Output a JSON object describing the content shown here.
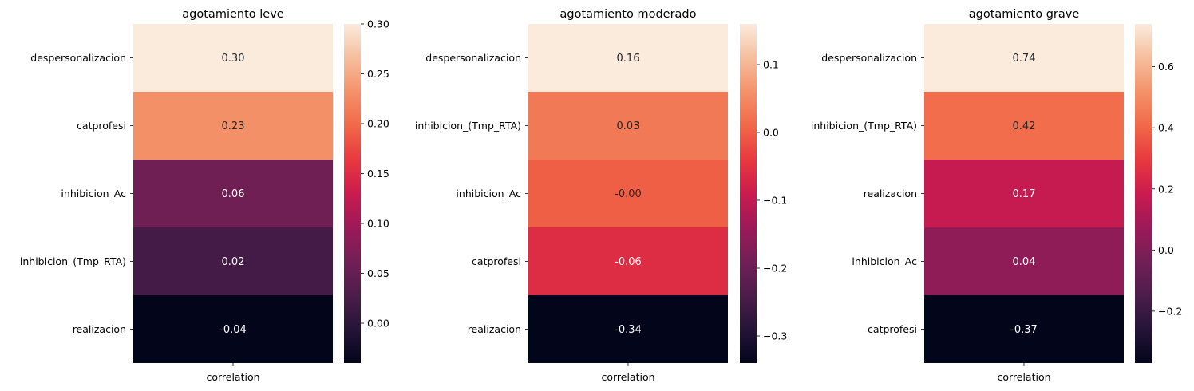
{
  "chart_data": [
    {
      "type": "heatmap",
      "title": "agotamiento leve",
      "xlabel": "",
      "ylabel": "",
      "x_categories": [
        "correlation"
      ],
      "rows": [
        "despersonalizacion",
        "catprofesi",
        "inhibicion_Ac",
        "inhibicion_(Tmp_RTA)",
        "realizacion"
      ],
      "values": [
        0.3,
        0.23,
        0.06,
        0.02,
        -0.04
      ],
      "value_labels": [
        "0.30",
        "0.23",
        "0.06",
        "0.02",
        "-0.04"
      ],
      "colorbar": {
        "vmin": -0.04,
        "vmax": 0.3,
        "ticks": [
          0.0,
          0.05,
          0.1,
          0.15,
          0.2,
          0.25,
          0.3
        ],
        "tick_labels": [
          "0.00",
          "0.05",
          "0.10",
          "0.15",
          "0.20",
          "0.25",
          "0.30"
        ]
      },
      "colormap": "rocket"
    },
    {
      "type": "heatmap",
      "title": "agotamiento moderado",
      "xlabel": "",
      "ylabel": "",
      "x_categories": [
        "correlation"
      ],
      "rows": [
        "despersonalizacion",
        "inhibicion_(Tmp_RTA)",
        "inhibicion_Ac",
        "catprofesi",
        "realizacion"
      ],
      "values": [
        0.16,
        0.03,
        -0.0,
        -0.06,
        -0.34
      ],
      "value_labels": [
        "0.16",
        "0.03",
        "-0.00",
        "-0.06",
        "-0.34"
      ],
      "colorbar": {
        "vmin": -0.34,
        "vmax": 0.16,
        "ticks": [
          -0.3,
          -0.2,
          -0.1,
          0.0,
          0.1
        ],
        "tick_labels": [
          "−0.3",
          "−0.2",
          "−0.1",
          "0.0",
          "0.1"
        ]
      },
      "colormap": "rocket"
    },
    {
      "type": "heatmap",
      "title": "agotamiento grave",
      "xlabel": "",
      "ylabel": "",
      "x_categories": [
        "correlation"
      ],
      "rows": [
        "despersonalizacion",
        "inhibicion_(Tmp_RTA)",
        "realizacion",
        "inhibicion_Ac",
        "catprofesi"
      ],
      "values": [
        0.74,
        0.42,
        0.17,
        0.04,
        -0.37
      ],
      "value_labels": [
        "0.74",
        "0.42",
        "0.17",
        "0.04",
        "-0.37"
      ],
      "colorbar": {
        "vmin": -0.37,
        "vmax": 0.74,
        "ticks": [
          -0.2,
          0.0,
          0.2,
          0.4,
          0.6
        ],
        "tick_labels": [
          "−0.2",
          "0.0",
          "0.2",
          "0.4",
          "0.6"
        ]
      },
      "colormap": "rocket"
    }
  ]
}
